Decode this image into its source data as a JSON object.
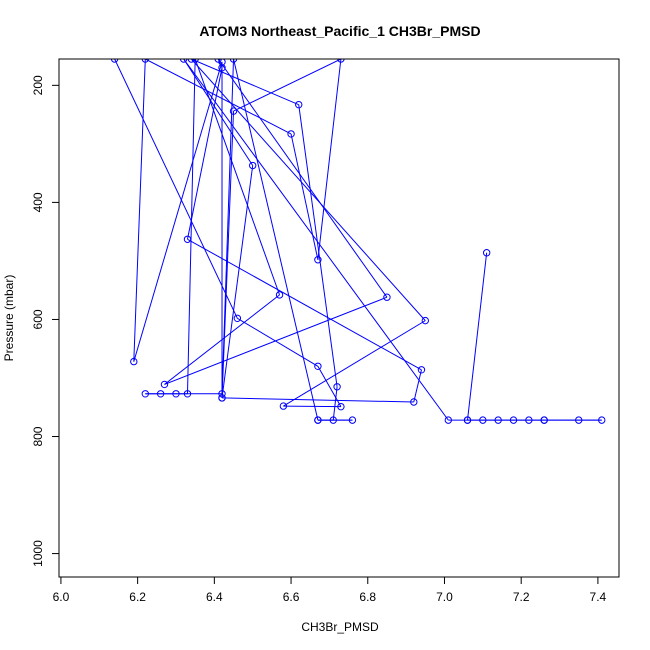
{
  "chart_data": {
    "type": "line",
    "title": "ATOM3 Northeast_Pacific_1 CH3Br_PMSD",
    "xlabel": "CH3Br_PMSD",
    "ylabel": "Pressure (mbar)",
    "xlim": [
      5.995,
      7.455
    ],
    "ylim": [
      1040,
      155
    ],
    "y_reversed": true,
    "x_ticks": [
      6.0,
      6.2,
      6.4,
      6.6,
      6.8,
      7.0,
      7.2,
      7.4
    ],
    "x_tick_labels": [
      "6.0",
      "6.2",
      "6.4",
      "6.6",
      "6.8",
      "7.0",
      "7.2",
      "7.4"
    ],
    "y_ticks": [
      200,
      400,
      600,
      800,
      1000
    ],
    "y_tick_labels": [
      "200",
      "400",
      "600",
      "800",
      "1000"
    ],
    "grid": false,
    "line_color": "#0000ff",
    "marker": "open-circle",
    "series": [
      {
        "points": [
          [
            6.14,
            155
          ],
          [
            6.46,
            598
          ],
          [
            6.67,
            680
          ],
          [
            6.73,
            749
          ],
          [
            6.58,
            748
          ],
          [
            6.95,
            602
          ],
          [
            6.34,
            155
          ],
          [
            6.62,
            233
          ],
          [
            6.72,
            715
          ],
          [
            6.71,
            772
          ],
          [
            6.67,
            772
          ],
          [
            6.76,
            772
          ],
          [
            6.67,
            772
          ],
          [
            6.45,
            155
          ],
          [
            6.42,
            727
          ],
          [
            6.22,
            727
          ],
          [
            6.26,
            727
          ],
          [
            6.3,
            727
          ],
          [
            6.33,
            727
          ],
          [
            6.35,
            155
          ],
          [
            6.57,
            558
          ],
          [
            6.27,
            711
          ],
          [
            6.85,
            562
          ],
          [
            6.41,
            155
          ],
          [
            6.42,
            170
          ],
          [
            6.33,
            463
          ],
          [
            6.94,
            686
          ],
          [
            6.92,
            741
          ],
          [
            6.42,
            734
          ],
          [
            6.42,
            160
          ],
          [
            6.19,
            672
          ],
          [
            6.22,
            155
          ],
          [
            6.6,
            283
          ],
          [
            6.67,
            498
          ],
          [
            6.73,
            155
          ],
          [
            6.45,
            244
          ],
          [
            6.42,
            734
          ],
          [
            6.5,
            337
          ],
          [
            6.32,
            155
          ],
          [
            7.01,
            772
          ],
          [
            7.06,
            772
          ],
          [
            7.1,
            772
          ],
          [
            7.14,
            772
          ],
          [
            7.18,
            772
          ],
          [
            7.22,
            772
          ],
          [
            7.26,
            772
          ],
          [
            7.35,
            772
          ],
          [
            7.41,
            772
          ],
          [
            7.26,
            772
          ],
          [
            7.06,
            772
          ],
          [
            7.11,
            486
          ]
        ]
      }
    ]
  }
}
